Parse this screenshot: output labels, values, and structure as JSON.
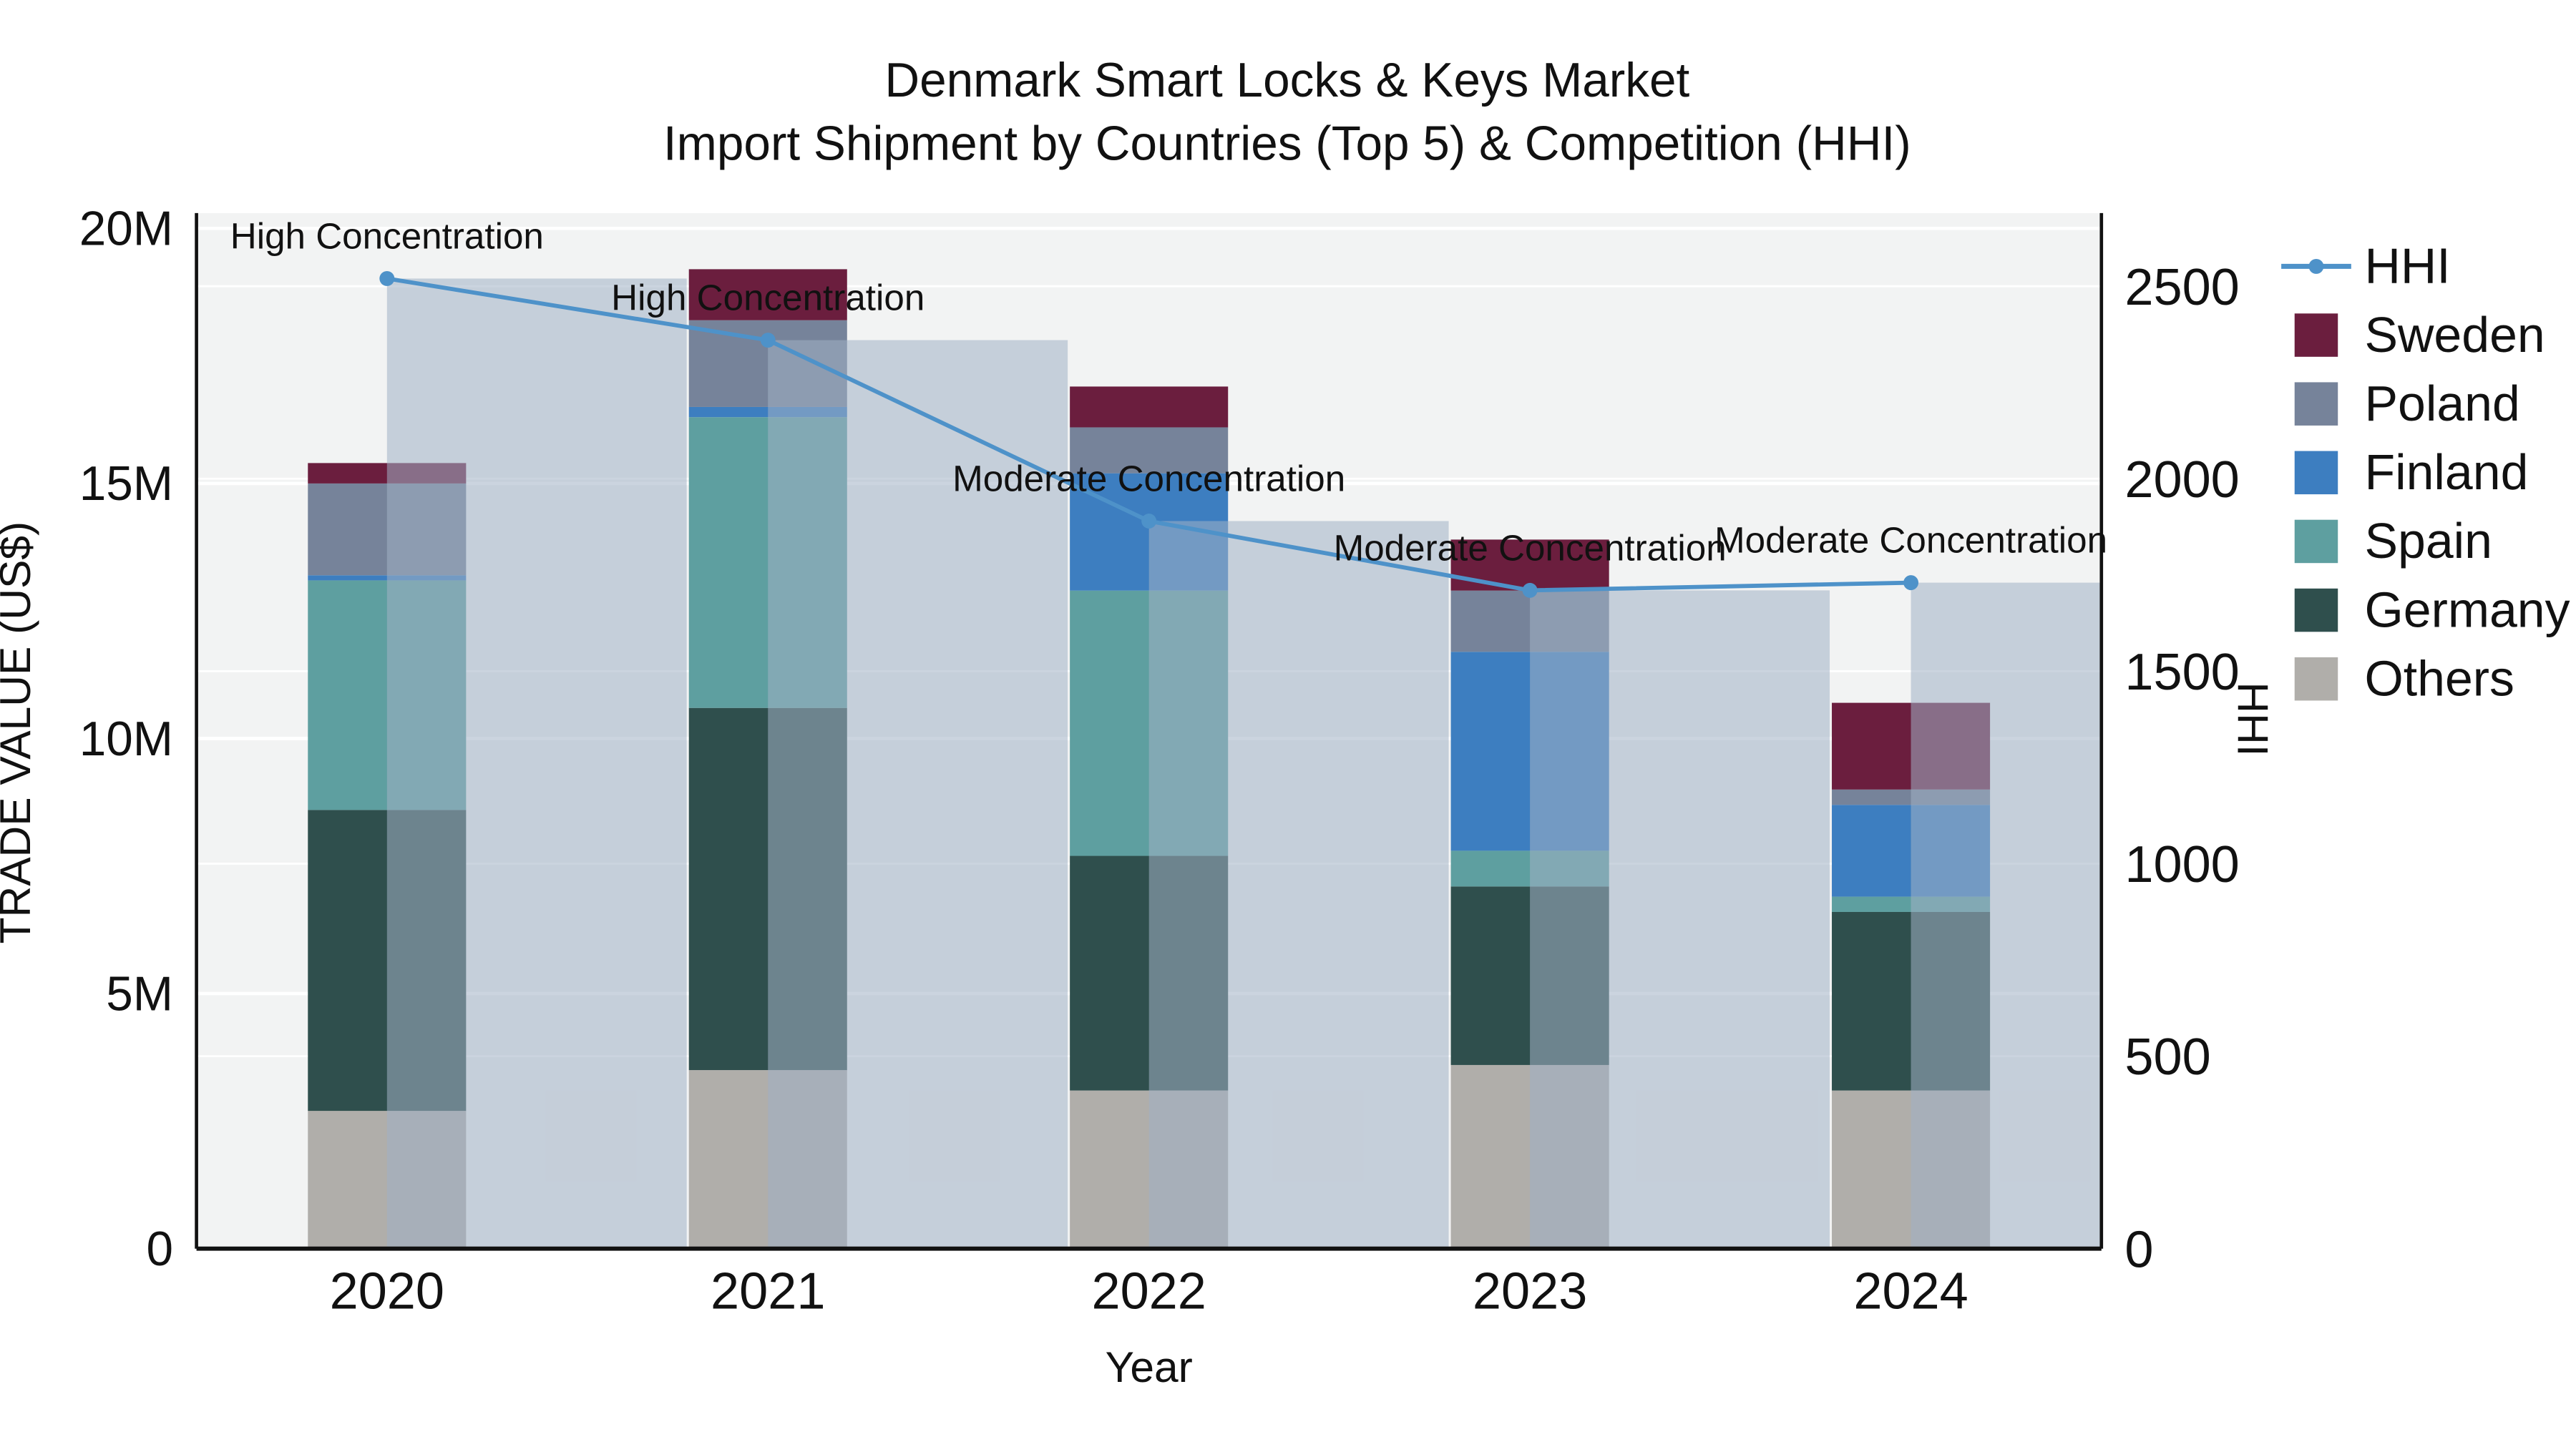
{
  "chart_data": {
    "type": "stacked_bar_with_line",
    "title_line1": "Denmark Smart Locks & Keys Market",
    "title_line2": "Import Shipment by Countries (Top 5) & Competition (HHI)",
    "xlabel": "Year",
    "ylabel_left": "TRADE VALUE (US$)",
    "ylabel_right": "HHI",
    "categories": [
      "2020",
      "2021",
      "2022",
      "2023",
      "2024"
    ],
    "bar_unit": "million US$",
    "bar_series": [
      {
        "name": "Others",
        "color": "#b0aeaa",
        "values_musd": [
          2.7,
          3.5,
          3.1,
          3.6,
          3.1
        ]
      },
      {
        "name": "Germany",
        "color": "#2f4f4d",
        "values_musd": [
          5.9,
          7.1,
          4.6,
          3.5,
          3.5
        ]
      },
      {
        "name": "Spain",
        "color": "#5e9fa0",
        "values_musd": [
          4.5,
          5.7,
          5.2,
          0.7,
          0.3
        ]
      },
      {
        "name": "Finland",
        "color": "#3d7ec0",
        "values_musd": [
          0.1,
          0.2,
          2.3,
          3.9,
          1.8
        ]
      },
      {
        "name": "Poland",
        "color": "#76839a",
        "values_musd": [
          1.8,
          1.7,
          0.9,
          1.2,
          0.3
        ]
      },
      {
        "name": "Sweden",
        "color": "#6b1e3e",
        "values_musd": [
          0.4,
          1.0,
          0.8,
          1.0,
          1.7
        ]
      }
    ],
    "line_series": {
      "name": "HHI",
      "color": "#4e92c9",
      "values": [
        2520,
        2360,
        1890,
        1710,
        1730
      ]
    },
    "hhi_overlay_bar_color": "rgba(160,176,196,0.55)",
    "annotations": [
      {
        "x": "2020",
        "text": "High Concentration"
      },
      {
        "x": "2021",
        "text": "High Concentration"
      },
      {
        "x": "2022",
        "text": "Moderate Concentration"
      },
      {
        "x": "2023",
        "text": "Moderate Concentration"
      },
      {
        "x": "2024",
        "text": "Moderate Concentration"
      }
    ],
    "left_axis": {
      "min": 0,
      "max": 20.3,
      "tick_values": [
        0,
        5,
        10,
        15,
        20
      ],
      "tick_labels": [
        "0",
        "5M",
        "10M",
        "15M",
        "20M"
      ]
    },
    "right_axis": {
      "min": 0,
      "max": 2690,
      "tick_values": [
        0,
        500,
        1000,
        1500,
        2000,
        2500
      ],
      "tick_labels": [
        "0",
        "500",
        "1000",
        "1500",
        "2000",
        "2500"
      ]
    },
    "legend": {
      "position": "right",
      "items": [
        {
          "label": "HHI",
          "type": "line",
          "color": "#4e92c9"
        },
        {
          "label": "Sweden",
          "type": "square",
          "color": "#6b1e3e"
        },
        {
          "label": "Poland",
          "type": "square",
          "color": "#76839a"
        },
        {
          "label": "Finland",
          "type": "square",
          "color": "#3d7ec0"
        },
        {
          "label": "Spain",
          "type": "square",
          "color": "#5e9fa0"
        },
        {
          "label": "Germany",
          "type": "square",
          "color": "#2f4f4d"
        },
        {
          "label": "Others",
          "type": "square",
          "color": "#b0aeaa"
        }
      ]
    },
    "plot_background": "#f2f3f3",
    "grid": true
  }
}
